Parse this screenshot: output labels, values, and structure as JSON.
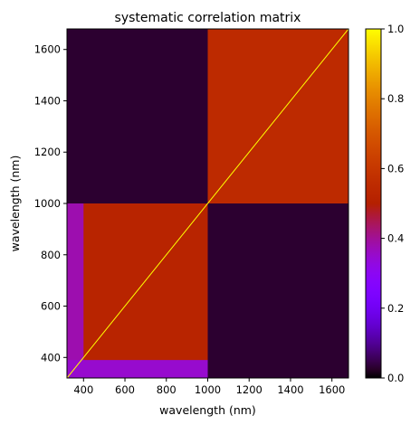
{
  "chart_data": {
    "type": "heatmap",
    "title": "systematic correlation matrix",
    "xlabel": "wavelength (nm)",
    "ylabel": "wavelength (nm)",
    "xlim": [
      320,
      1680
    ],
    "ylim": [
      320,
      1680
    ],
    "x_ticks": [
      400,
      600,
      800,
      1000,
      1200,
      1400,
      1600
    ],
    "y_ticks": [
      400,
      600,
      800,
      1000,
      1200,
      1400,
      1600
    ],
    "x_tick_labels": [
      "400",
      "600",
      "800",
      "1000",
      "1200",
      "1400",
      "1600"
    ],
    "y_tick_labels": [
      "400",
      "600",
      "800",
      "1000",
      "1200",
      "1400",
      "1600"
    ],
    "colorbar": {
      "colormap": "gnuplot",
      "range": [
        0.0,
        1.0
      ],
      "ticks": [
        0.0,
        0.2,
        0.4,
        0.6,
        0.8,
        1.0
      ],
      "tick_labels": [
        "0.0",
        "0.2",
        "0.4",
        "0.6",
        "0.8",
        "1.0"
      ]
    },
    "blocks": [
      {
        "x_range": [
          320,
          1000
        ],
        "y_range": [
          1000,
          1680
        ],
        "value": 0.03
      },
      {
        "x_range": [
          1000,
          1680
        ],
        "y_range": [
          1000,
          1680
        ],
        "value": 0.55
      },
      {
        "x_range": [
          320,
          1000
        ],
        "y_range": [
          320,
          1000
        ],
        "value": 0.52
      },
      {
        "x_range": [
          1000,
          1680
        ],
        "y_range": [
          320,
          1000
        ],
        "value": 0.03
      }
    ],
    "low_edge_regions": [
      {
        "x_range": [
          320,
          400
        ],
        "y_range": [
          320,
          1000
        ],
        "value": 0.38
      },
      {
        "x_range": [
          320,
          1000
        ],
        "y_range": [
          320,
          390
        ],
        "value": 0.35
      }
    ],
    "diagonal": {
      "range": [
        320,
        1680
      ],
      "value": 1.0
    }
  }
}
